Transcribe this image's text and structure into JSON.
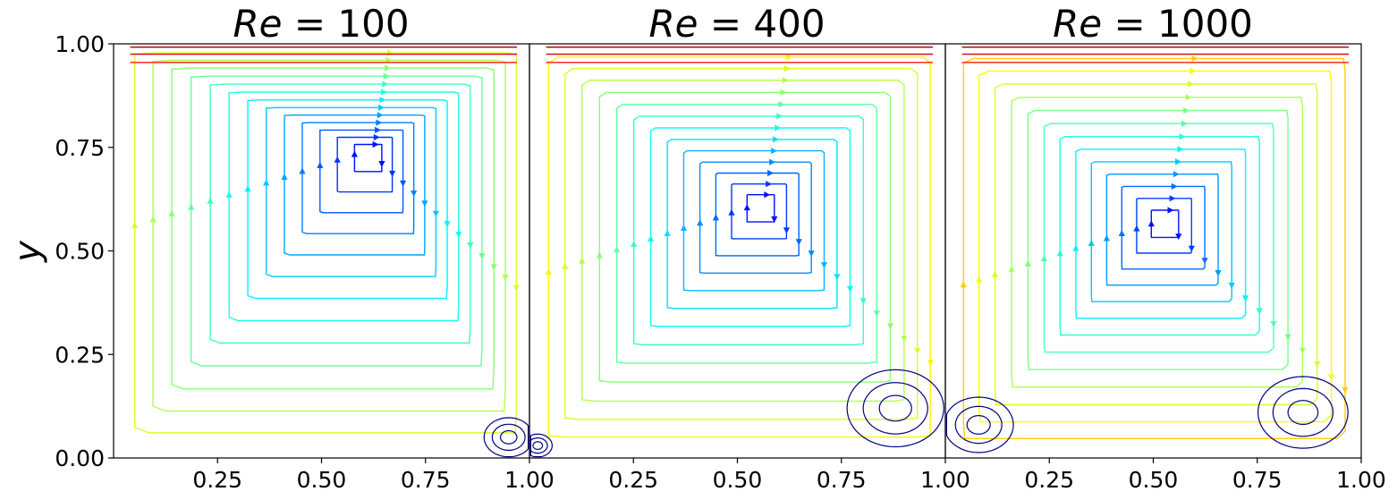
{
  "chart_data": [
    {
      "type": "streamline",
      "title_var": "Re",
      "title_value": "= 100",
      "re": 100,
      "vortex_center": [
        0.62,
        0.74
      ],
      "secondary_vortices": [
        [
          0.95,
          0.05
        ]
      ],
      "xlim": [
        0,
        1
      ],
      "ylim": [
        0,
        1
      ],
      "xticks": [
        "0.25",
        "0.50",
        "0.75",
        "1.00"
      ],
      "xtick_values": [
        0.25,
        0.5,
        0.75,
        1.0
      ],
      "yticks": [
        "0.00",
        "0.25",
        "0.50",
        "0.75",
        "1.00"
      ],
      "ytick_values": [
        0,
        0.25,
        0.5,
        0.75,
        1.0
      ],
      "ylabel": "y",
      "colormap": "jet",
      "lid_velocity_direction": "right"
    },
    {
      "type": "streamline",
      "title_var": "Re",
      "title_value": "= 400",
      "re": 400,
      "vortex_center": [
        0.56,
        0.61
      ],
      "secondary_vortices": [
        [
          0.88,
          0.12
        ],
        [
          0.02,
          0.03
        ]
      ],
      "xlim": [
        0,
        1
      ],
      "ylim": [
        0,
        1
      ],
      "xticks": [
        "0.25",
        "0.50",
        "0.75",
        "1.00"
      ],
      "xtick_values": [
        0.25,
        0.5,
        0.75,
        1.0
      ],
      "colormap": "jet",
      "lid_velocity_direction": "right"
    },
    {
      "type": "streamline",
      "title_var": "Re",
      "title_value": "= 1000",
      "re": 1000,
      "vortex_center": [
        0.53,
        0.57
      ],
      "secondary_vortices": [
        [
          0.86,
          0.11
        ],
        [
          0.08,
          0.08
        ]
      ],
      "xlim": [
        0,
        1
      ],
      "ylim": [
        0,
        1
      ],
      "xticks": [
        "0.25",
        "0.50",
        "0.75",
        "1.00"
      ],
      "xtick_values": [
        0.25,
        0.5,
        0.75,
        1.0
      ],
      "colormap": "jet",
      "lid_velocity_direction": "right"
    }
  ]
}
